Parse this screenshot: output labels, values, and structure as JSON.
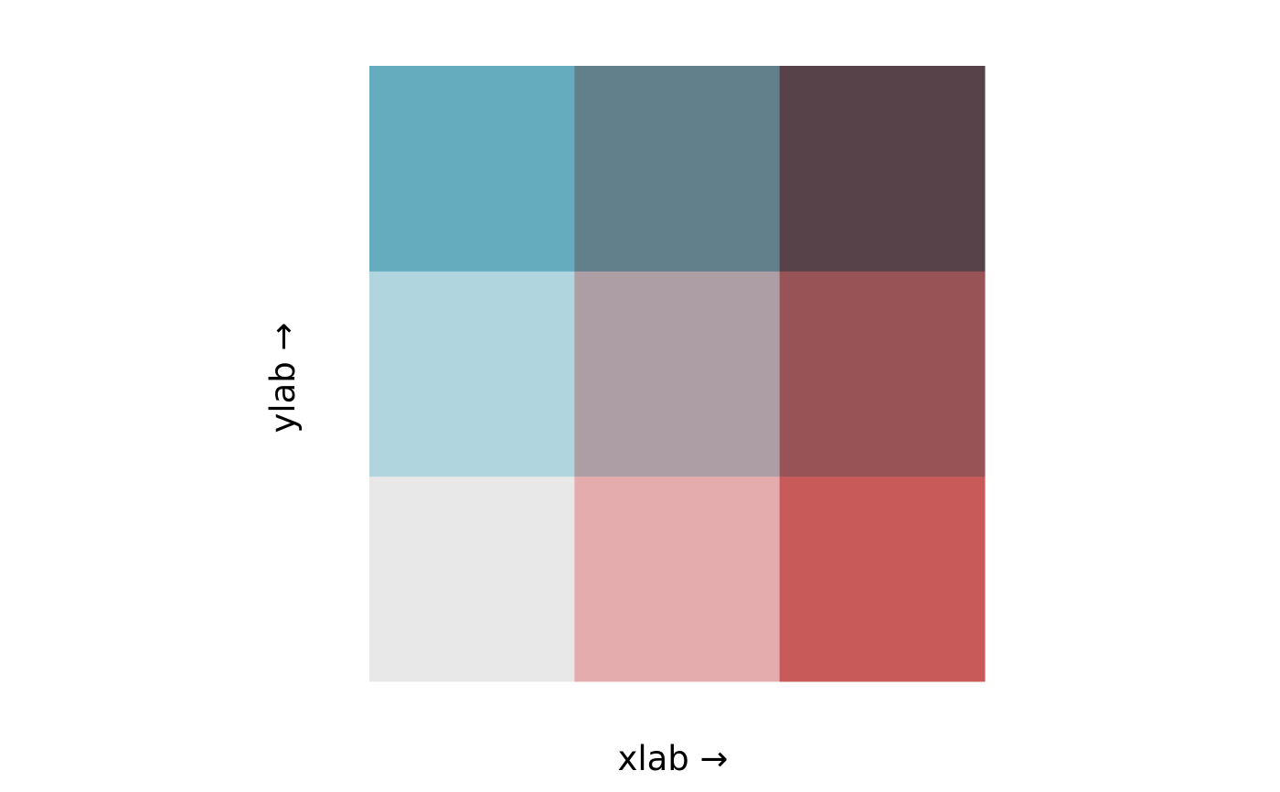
{
  "chart_data": {
    "type": "heatmap",
    "title": "",
    "xlabel": "xlab →",
    "ylabel": "ylab →",
    "rows": 3,
    "cols": 3,
    "cells": [
      {
        "x": 1,
        "y": 1,
        "color": "#e8e8e8"
      },
      {
        "x": 2,
        "y": 1,
        "color": "#e4acac"
      },
      {
        "x": 3,
        "y": 1,
        "color": "#c85a5a"
      },
      {
        "x": 1,
        "y": 2,
        "color": "#b0d5df"
      },
      {
        "x": 2,
        "y": 2,
        "color": "#ad9ea5"
      },
      {
        "x": 3,
        "y": 2,
        "color": "#985356"
      },
      {
        "x": 1,
        "y": 3,
        "color": "#64acbe"
      },
      {
        "x": 2,
        "y": 3,
        "color": "#627f8c"
      },
      {
        "x": 3,
        "y": 3,
        "color": "#574249"
      }
    ]
  }
}
